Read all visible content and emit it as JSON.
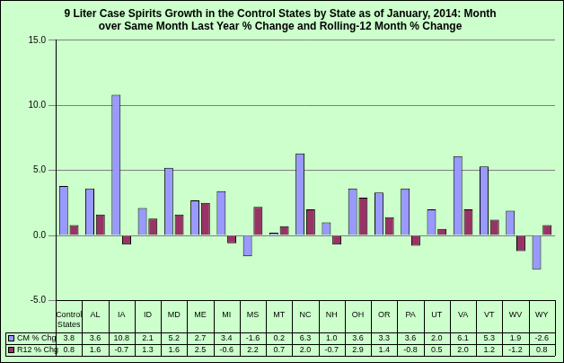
{
  "chart_data": {
    "type": "bar",
    "title": "9 Liter Case Spirits Growth in the Control States by State as of January, 2014: Month over Same Month Last Year % Change and Rolling-12 Month % Change",
    "categories": [
      "Control States",
      "AL",
      "IA",
      "ID",
      "MD",
      "ME",
      "MI",
      "MS",
      "MT",
      "NC",
      "NH",
      "OH",
      "OR",
      "PA",
      "UT",
      "VA",
      "VT",
      "WV",
      "WY"
    ],
    "series": [
      {
        "name": "CM % Chg",
        "color": "#9999ff",
        "values": [
          3.8,
          3.6,
          10.8,
          2.1,
          5.2,
          2.7,
          3.4,
          -1.6,
          0.2,
          6.3,
          1.0,
          3.6,
          3.3,
          3.6,
          2.0,
          6.1,
          5.3,
          1.9,
          -2.6
        ],
        "value_labels": [
          "3.8",
          "3.6",
          "10.8",
          "2.1",
          "5.2",
          "2.7",
          "3.4",
          "-1.6",
          "0.2",
          "6.3",
          "1.0",
          "3.6",
          "3.3",
          "3.6",
          "2.0",
          "6.1",
          "5.3",
          "1.9",
          "-2.6"
        ]
      },
      {
        "name": "R12 % Chg",
        "color": "#993366",
        "values": [
          0.8,
          1.6,
          -0.7,
          1.3,
          1.6,
          2.5,
          -0.6,
          2.2,
          0.7,
          2.0,
          -0.7,
          2.9,
          1.4,
          -0.8,
          0.5,
          2.0,
          1.2,
          -1.2,
          0.8
        ],
        "value_labels": [
          "0.8",
          "1.6",
          "-0.7",
          "1.3",
          "1.6",
          "2.5",
          "-0.6",
          "2.2",
          "0.7",
          "2.0",
          "-0.7",
          "2.9",
          "1.4",
          "-0.8",
          "0.5",
          "2.0",
          "1.2",
          "-1.2",
          "0.8"
        ]
      }
    ],
    "ylim": [
      -5,
      15
    ],
    "yticks": [
      {
        "value": -5,
        "label": "-5.0"
      },
      {
        "value": 0,
        "label": "0.0"
      },
      {
        "value": 5,
        "label": "5.0"
      },
      {
        "value": 10,
        "label": "10.0"
      },
      {
        "value": 15,
        "label": "15.0"
      }
    ],
    "grid": true,
    "data_labels": true
  }
}
